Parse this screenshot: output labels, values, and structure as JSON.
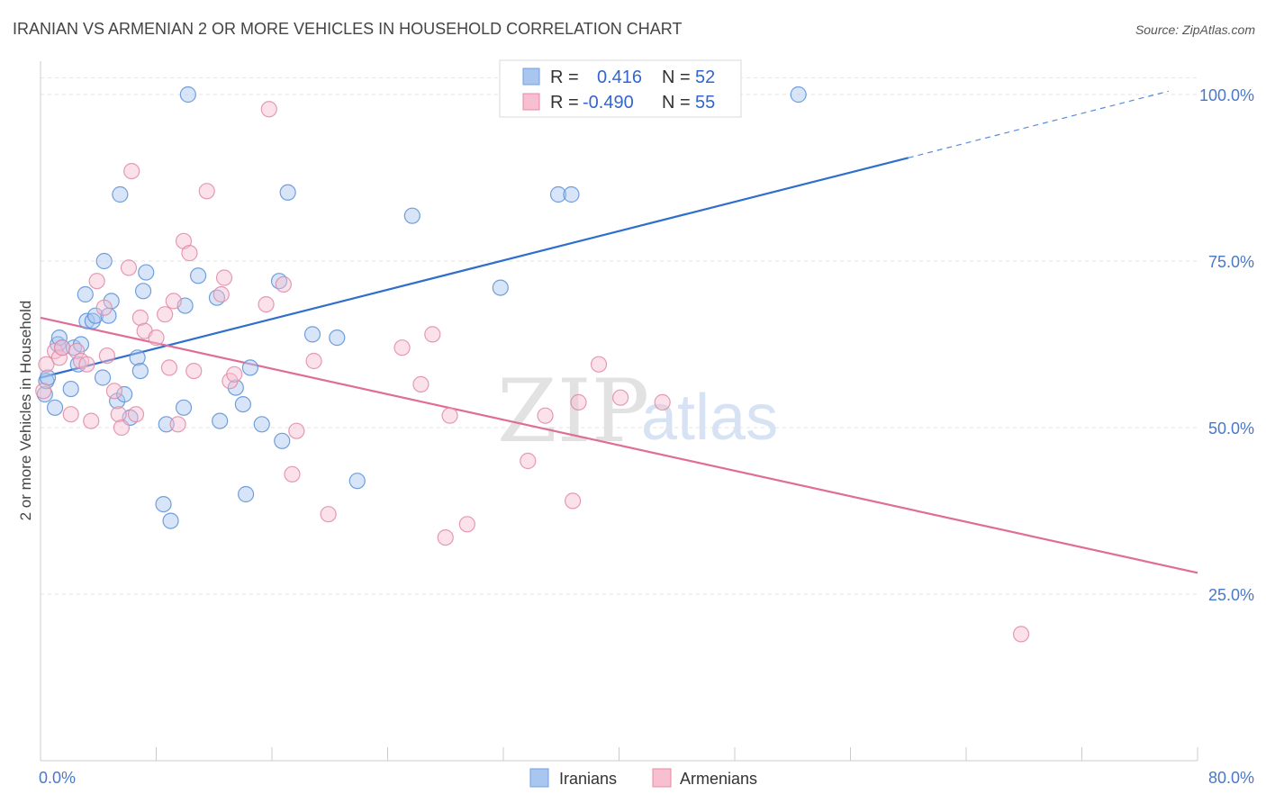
{
  "title": "IRANIAN VS ARMENIAN 2 OR MORE VEHICLES IN HOUSEHOLD CORRELATION CHART",
  "source": "Source: ZipAtlas.com",
  "watermark": {
    "zip": "ZIP",
    "atlas": "atlas"
  },
  "legend": {
    "rows": [
      {
        "r_label": "R =",
        "r_value": "0.416",
        "n_label": "N =",
        "n_value": "52",
        "color": "#a9c6f0",
        "stroke": "#6f9fe0"
      },
      {
        "r_label": "R =",
        "r_value": "-0.490",
        "n_label": "N =",
        "n_value": "55",
        "color": "#f7bfd0",
        "stroke": "#e88aa8"
      }
    ]
  },
  "chart_data": {
    "type": "scatter",
    "title": "IRANIAN VS ARMENIAN 2 OR MORE VEHICLES IN HOUSEHOLD CORRELATION CHART",
    "xlabel": "",
    "ylabel": "2 or more Vehicles in Household",
    "xlim": [
      0,
      80
    ],
    "ylim": [
      0,
      105
    ],
    "x_tick_labels": [
      "0.0%",
      "80.0%"
    ],
    "y_ticks": [
      25,
      50,
      75,
      100
    ],
    "y_tick_labels": [
      "25.0%",
      "50.0%",
      "75.0%",
      "100.0%"
    ],
    "grid": true,
    "legend_position": "top-center",
    "series": [
      {
        "name": "Iranians",
        "color": "#a9c6f0",
        "stroke": "#5b8fd6",
        "trend_color": "#2f6fcc",
        "trend": {
          "x": [
            0,
            60,
            78
          ],
          "y": [
            57.5,
            90.5,
            100.5
          ],
          "solid_until_x": 60
        },
        "points": [
          [
            0.3,
            55.0
          ],
          [
            0.4,
            57.0
          ],
          [
            0.5,
            57.5
          ],
          [
            1.0,
            53.0
          ],
          [
            1.2,
            62.5
          ],
          [
            1.3,
            63.5
          ],
          [
            1.5,
            62.0
          ],
          [
            2.1,
            55.8
          ],
          [
            2.3,
            62.0
          ],
          [
            2.6,
            59.5
          ],
          [
            2.8,
            62.5
          ],
          [
            3.1,
            70.0
          ],
          [
            3.2,
            66.0
          ],
          [
            3.6,
            66.0
          ],
          [
            3.8,
            66.8
          ],
          [
            4.3,
            57.5
          ],
          [
            4.4,
            75.0
          ],
          [
            4.7,
            66.8
          ],
          [
            4.9,
            69.0
          ],
          [
            5.3,
            54.0
          ],
          [
            5.5,
            85.0
          ],
          [
            5.8,
            55.0
          ],
          [
            6.2,
            51.5
          ],
          [
            6.7,
            60.5
          ],
          [
            6.9,
            58.5
          ],
          [
            7.1,
            70.5
          ],
          [
            7.3,
            73.3
          ],
          [
            8.5,
            38.5
          ],
          [
            8.7,
            50.5
          ],
          [
            9.0,
            36.0
          ],
          [
            9.9,
            53.0
          ],
          [
            10.0,
            68.3
          ],
          [
            10.2,
            100.0
          ],
          [
            10.9,
            72.8
          ],
          [
            12.2,
            69.5
          ],
          [
            12.4,
            51.0
          ],
          [
            13.5,
            56.0
          ],
          [
            14.0,
            53.5
          ],
          [
            14.2,
            40.0
          ],
          [
            14.5,
            59.0
          ],
          [
            15.3,
            50.5
          ],
          [
            16.5,
            72.0
          ],
          [
            16.7,
            48.0
          ],
          [
            17.1,
            85.3
          ],
          [
            18.8,
            64.0
          ],
          [
            20.5,
            63.5
          ],
          [
            21.9,
            42.0
          ],
          [
            25.7,
            81.8
          ],
          [
            31.8,
            71.0
          ],
          [
            35.8,
            85.0
          ],
          [
            36.7,
            85.0
          ],
          [
            52.4,
            100.0
          ]
        ]
      },
      {
        "name": "Armenians",
        "color": "#f7bfd0",
        "stroke": "#e08aa6",
        "trend_color": "#e06d97",
        "trend": {
          "x": [
            0,
            80
          ],
          "y": [
            66.5,
            28.2
          ],
          "solid_until_x": 80
        },
        "points": [
          [
            0.2,
            55.5
          ],
          [
            0.4,
            59.5
          ],
          [
            1.0,
            61.5
          ],
          [
            1.3,
            60.5
          ],
          [
            1.5,
            62.0
          ],
          [
            2.1,
            52.0
          ],
          [
            2.5,
            61.5
          ],
          [
            2.8,
            60.0
          ],
          [
            3.2,
            59.5
          ],
          [
            3.5,
            51.0
          ],
          [
            3.9,
            72.0
          ],
          [
            4.4,
            68.0
          ],
          [
            4.6,
            60.8
          ],
          [
            5.1,
            55.5
          ],
          [
            5.4,
            52.0
          ],
          [
            5.6,
            50.0
          ],
          [
            6.1,
            74.0
          ],
          [
            6.3,
            88.5
          ],
          [
            6.6,
            52.0
          ],
          [
            6.9,
            66.5
          ],
          [
            7.2,
            64.5
          ],
          [
            8.0,
            63.5
          ],
          [
            8.6,
            67.0
          ],
          [
            8.9,
            59.0
          ],
          [
            9.2,
            69.0
          ],
          [
            9.5,
            50.5
          ],
          [
            9.9,
            78.0
          ],
          [
            10.3,
            76.2
          ],
          [
            10.6,
            58.5
          ],
          [
            11.5,
            85.5
          ],
          [
            12.5,
            70.0
          ],
          [
            12.7,
            72.5
          ],
          [
            13.1,
            57.0
          ],
          [
            13.4,
            58.0
          ],
          [
            15.6,
            68.5
          ],
          [
            15.8,
            97.8
          ],
          [
            16.8,
            71.5
          ],
          [
            17.4,
            43.0
          ],
          [
            17.7,
            49.5
          ],
          [
            18.9,
            60.0
          ],
          [
            19.9,
            37.0
          ],
          [
            25.0,
            62.0
          ],
          [
            26.3,
            56.5
          ],
          [
            27.1,
            64.0
          ],
          [
            28.0,
            33.5
          ],
          [
            28.3,
            51.8
          ],
          [
            29.5,
            35.5
          ],
          [
            33.7,
            45.0
          ],
          [
            34.9,
            51.8
          ],
          [
            36.8,
            39.0
          ],
          [
            37.2,
            53.8
          ],
          [
            38.6,
            59.5
          ],
          [
            40.1,
            54.5
          ],
          [
            43.0,
            53.8
          ],
          [
            67.8,
            19.0
          ]
        ]
      }
    ]
  }
}
